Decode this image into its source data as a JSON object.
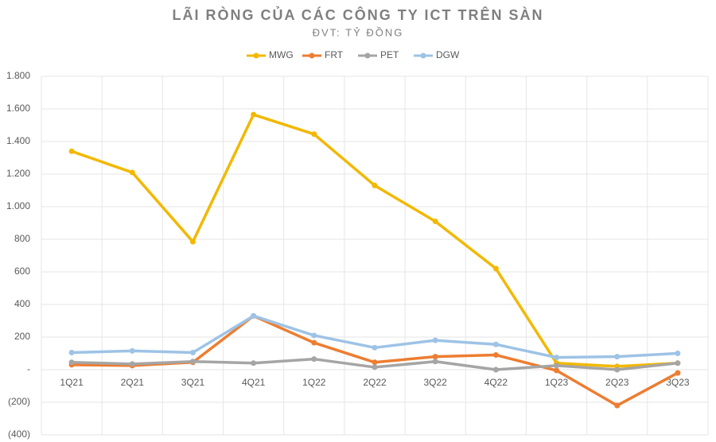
{
  "chart_data": {
    "type": "line",
    "title": "LÃI RÒNG CỦA CÁC CÔNG TY ICT TRÊN SÀN",
    "subtitle": "ĐVT: TỶ ĐỒNG",
    "categories": [
      "1Q21",
      "2Q21",
      "3Q21",
      "4Q21",
      "1Q22",
      "2Q22",
      "3Q22",
      "4Q22",
      "1Q23",
      "2Q23",
      "3Q23"
    ],
    "series": [
      {
        "name": "MWG",
        "color": "#f2b800",
        "values": [
          1340,
          1210,
          785,
          1565,
          1445,
          1130,
          910,
          620,
          40,
          20,
          40
        ]
      },
      {
        "name": "FRT",
        "color": "#ed7d31",
        "values": [
          30,
          25,
          45,
          330,
          165,
          45,
          80,
          90,
          -5,
          -220,
          -20
        ]
      },
      {
        "name": "PET",
        "color": "#a5a5a5",
        "values": [
          45,
          35,
          50,
          40,
          65,
          15,
          50,
          0,
          25,
          0,
          40
        ]
      },
      {
        "name": "DGW",
        "color": "#9dc3e6",
        "values": [
          105,
          115,
          105,
          330,
          210,
          135,
          180,
          155,
          75,
          80,
          100
        ]
      }
    ],
    "ylim": [
      -400,
      1800
    ],
    "yticks": [
      {
        "value": 1800,
        "label": "1.800"
      },
      {
        "value": 1600,
        "label": "1.600"
      },
      {
        "value": 1400,
        "label": "1.400"
      },
      {
        "value": 1200,
        "label": "1.200"
      },
      {
        "value": 1000,
        "label": "1.000"
      },
      800,
      600,
      400,
      200,
      {
        "value": 0,
        "label": "-"
      },
      {
        "value": -200,
        "label": "(200)"
      },
      {
        "value": -400,
        "label": "(400)"
      }
    ],
    "grid": true,
    "legend": "top"
  }
}
